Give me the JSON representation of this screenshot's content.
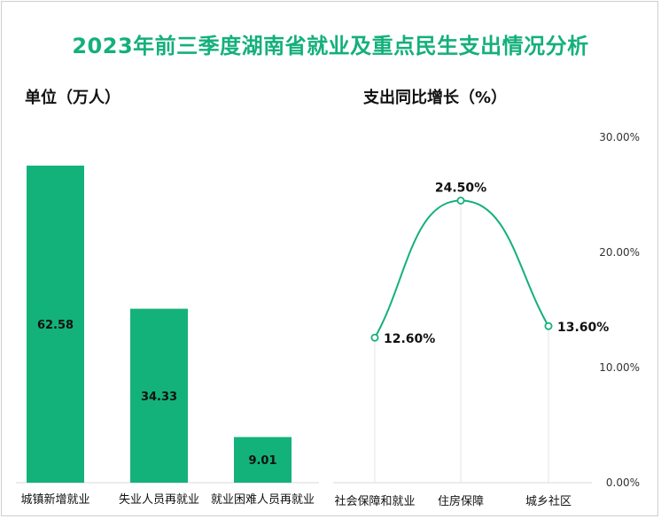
{
  "title": "2023年前三季度湖南省就业及重点民生支出情况分析",
  "colors": {
    "accent": "#14b07a",
    "bar": "#13b27a",
    "line": "#14b07a"
  },
  "chart_data": [
    {
      "type": "bar",
      "title": "单位（万人）",
      "categories": [
        "城镇新增就业",
        "失业人员再就业",
        "就业困难人员再就业"
      ],
      "values": [
        62.58,
        34.33,
        9.01
      ],
      "value_labels": [
        "62.58",
        "34.33",
        "9.01"
      ],
      "grid": false
    },
    {
      "type": "line",
      "title": "支出同比增长（%）",
      "categories": [
        "社会保障和就业",
        "住房保障",
        "城乡社区"
      ],
      "values": [
        12.6,
        24.5,
        13.6
      ],
      "value_labels": [
        "12.60%",
        "24.50%",
        "13.60%"
      ],
      "y_axis": {
        "position": "right",
        "ylim": [
          0,
          30
        ],
        "ticks": [
          "0.00%",
          "10.00%",
          "20.00%",
          "30.00%"
        ]
      },
      "grid": false
    }
  ]
}
